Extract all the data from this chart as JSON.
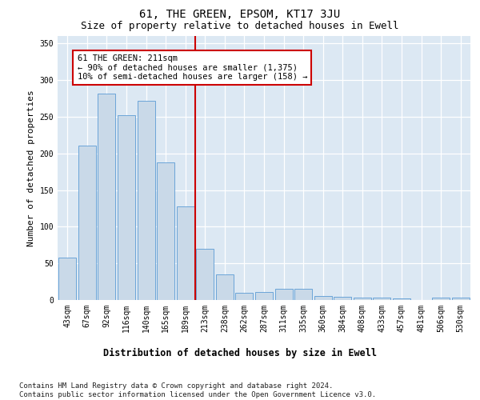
{
  "title": "61, THE GREEN, EPSOM, KT17 3JU",
  "subtitle": "Size of property relative to detached houses in Ewell",
  "xlabel": "Distribution of detached houses by size in Ewell",
  "ylabel": "Number of detached properties",
  "categories": [
    "43sqm",
    "67sqm",
    "92sqm",
    "116sqm",
    "140sqm",
    "165sqm",
    "189sqm",
    "213sqm",
    "238sqm",
    "262sqm",
    "287sqm",
    "311sqm",
    "335sqm",
    "360sqm",
    "384sqm",
    "408sqm",
    "433sqm",
    "457sqm",
    "481sqm",
    "506sqm",
    "530sqm"
  ],
  "values": [
    58,
    210,
    282,
    252,
    272,
    188,
    128,
    70,
    35,
    10,
    11,
    15,
    15,
    5,
    4,
    3,
    3,
    2,
    0,
    3,
    3
  ],
  "bar_color": "#c9d9e8",
  "bar_edge_color": "#5b9bd5",
  "vline_index": 6.5,
  "annotation_text": "61 THE GREEN: 211sqm\n← 90% of detached houses are smaller (1,375)\n10% of semi-detached houses are larger (158) →",
  "annotation_box_color": "#ffffff",
  "annotation_box_edge": "#cc0000",
  "vline_color": "#cc0000",
  "ylim": [
    0,
    360
  ],
  "yticks": [
    0,
    50,
    100,
    150,
    200,
    250,
    300,
    350
  ],
  "bg_color": "#dce8f3",
  "footer": "Contains HM Land Registry data © Crown copyright and database right 2024.\nContains public sector information licensed under the Open Government Licence v3.0.",
  "title_fontsize": 10,
  "subtitle_fontsize": 9,
  "xlabel_fontsize": 8.5,
  "ylabel_fontsize": 8,
  "tick_fontsize": 7,
  "footer_fontsize": 6.5
}
